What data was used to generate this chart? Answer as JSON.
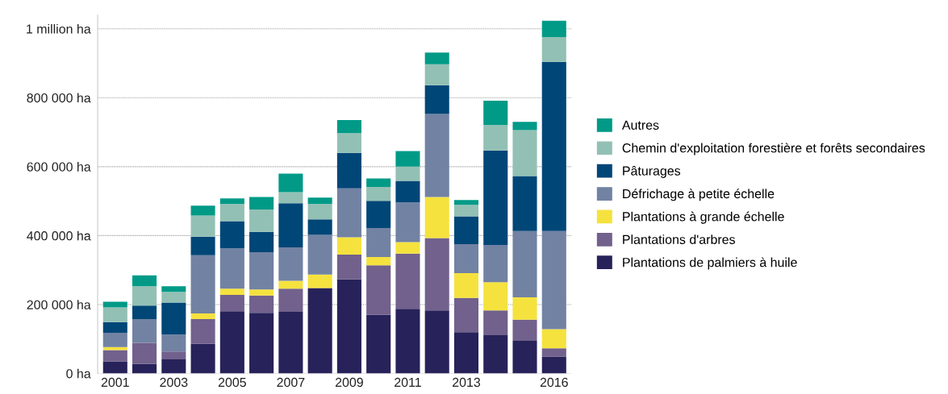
{
  "chart_data": {
    "type": "bar",
    "stacked": true,
    "categories": [
      "2001",
      null,
      "2003",
      null,
      "2005",
      null,
      "2007",
      null,
      "2009",
      null,
      "2011",
      null,
      "2013",
      null,
      null,
      "2016"
    ],
    "series": [
      {
        "name": "Plantations de palmiers à huile",
        "color": "#27225a",
        "values": [
          35000,
          28000,
          41000,
          86000,
          181000,
          176000,
          179000,
          248000,
          273000,
          170000,
          188000,
          183000,
          120000,
          111000,
          95000,
          49000
        ]
      },
      {
        "name": "Plantations d'arbres",
        "color": "#71618c",
        "values": [
          33000,
          61000,
          23000,
          72000,
          47000,
          50000,
          67000,
          0,
          72000,
          144000,
          160000,
          210000,
          99000,
          72000,
          61000,
          24000
        ]
      },
      {
        "name": "Plantations à grande échelle",
        "color": "#f5e23e",
        "values": [
          9000,
          0,
          0,
          16000,
          18000,
          18000,
          23000,
          39000,
          50000,
          24000,
          33000,
          119000,
          72000,
          82000,
          65000,
          56000
        ]
      },
      {
        "name": "Défrichage à petite échelle",
        "color": "#7282a3",
        "values": [
          41000,
          69000,
          49000,
          169000,
          117000,
          108000,
          97000,
          115000,
          142000,
          84000,
          115000,
          241000,
          84000,
          108000,
          192000,
          284000
        ]
      },
      {
        "name": "Pâturages",
        "color": "#004677",
        "values": [
          31000,
          39000,
          93000,
          54000,
          79000,
          59000,
          128000,
          45000,
          103000,
          79000,
          63000,
          83000,
          81000,
          274000,
          160000,
          491000
        ]
      },
      {
        "name": "Chemin d'exploitation forestière et forêts secondaires",
        "color": "#93c0b4",
        "values": [
          43000,
          56000,
          31000,
          61000,
          50000,
          65000,
          32000,
          45000,
          57000,
          40000,
          41000,
          61000,
          33000,
          74000,
          133000,
          72000
        ]
      },
      {
        "name": "Autres",
        "color": "#009a87",
        "values": [
          16000,
          32000,
          16000,
          29000,
          16000,
          36000,
          54000,
          18000,
          38000,
          25000,
          45000,
          34000,
          14000,
          70000,
          24000,
          47000
        ]
      }
    ],
    "ylim": [
      0,
      1040000
    ],
    "yticks": [
      {
        "value": 0,
        "label": "0 ha"
      },
      {
        "value": 200000,
        "label": "200 000 ha"
      },
      {
        "value": 400000,
        "label": "400 000 ha"
      },
      {
        "value": 600000,
        "label": "600 000 ha"
      },
      {
        "value": 800000,
        "label": "800 000 ha"
      },
      {
        "value": 1000000,
        "label": "1 million ha"
      }
    ],
    "grid": "y",
    "legend": "right"
  }
}
